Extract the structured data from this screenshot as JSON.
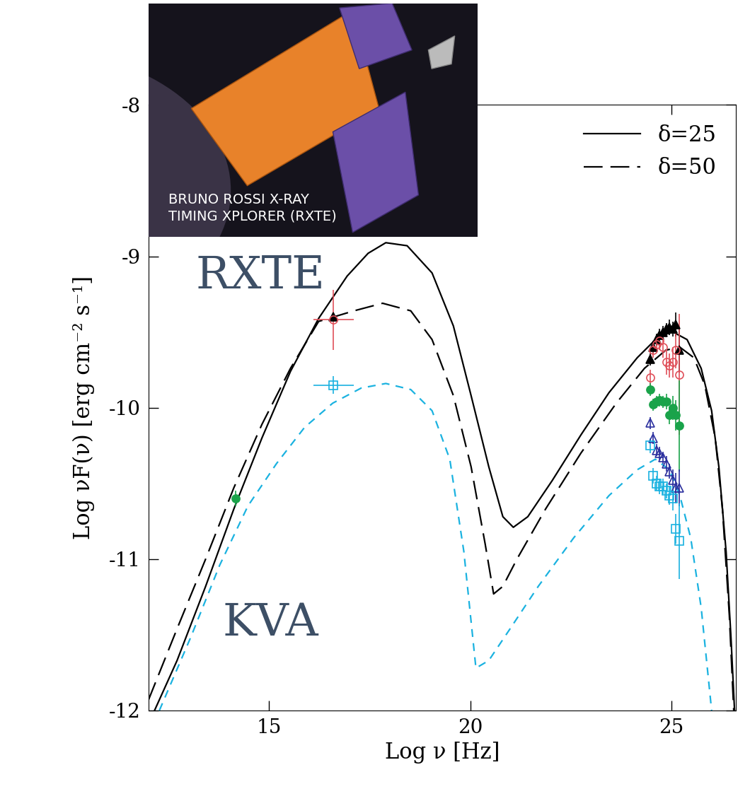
{
  "chart_data": {
    "type": "line",
    "x_label": "Log ν [Hz]",
    "y_label": "Log νF(ν) [erg cm⁻² s⁻¹]",
    "xlim": [
      12,
      26.6
    ],
    "ylim": [
      -12,
      -8
    ],
    "xticks": [
      15,
      20,
      25
    ],
    "yticks": [
      -12,
      -11,
      -10,
      -9,
      -8
    ],
    "legend": "upper right",
    "annotations": [
      "RXTE",
      "KVA"
    ],
    "series": [
      {
        "name": "δ=25",
        "type": "line",
        "color": "#000000",
        "line_style": "solid",
        "x": [
          12.15,
          12.71,
          13.42,
          14.12,
          14.82,
          15.53,
          16.23,
          16.94,
          17.46,
          17.9,
          18.43,
          19.05,
          19.58,
          20.02,
          20.46,
          20.81,
          21.07,
          21.43,
          22.04,
          22.75,
          23.45,
          24.15,
          24.68,
          25.04,
          25.39,
          25.74,
          26.0,
          26.18,
          26.36,
          26.48,
          26.57
        ],
        "values": [
          -12.0,
          -11.67,
          -11.18,
          -10.67,
          -10.2,
          -9.76,
          -9.41,
          -9.13,
          -8.98,
          -8.91,
          -8.93,
          -9.11,
          -9.46,
          -9.92,
          -10.39,
          -10.72,
          -10.79,
          -10.72,
          -10.48,
          -10.18,
          -9.9,
          -9.67,
          -9.53,
          -9.5,
          -9.55,
          -9.74,
          -10.02,
          -10.39,
          -10.95,
          -11.51,
          -12.0
        ]
      },
      {
        "name": "δ=50",
        "type": "line",
        "color": "#000000",
        "line_style": "long_dashed",
        "x": [
          12.0,
          12.71,
          13.42,
          14.12,
          14.82,
          15.53,
          16.23,
          17.11,
          17.82,
          18.52,
          19.05,
          19.58,
          20.02,
          20.37,
          20.58,
          20.81,
          21.16,
          21.87,
          22.75,
          23.63,
          24.33,
          24.86,
          25.21,
          25.56,
          25.83,
          26.09,
          26.27,
          26.44,
          26.55
        ],
        "values": [
          -11.93,
          -11.46,
          -11.0,
          -10.53,
          -10.11,
          -9.74,
          -9.43,
          -9.36,
          -9.31,
          -9.36,
          -9.55,
          -9.92,
          -10.39,
          -10.9,
          -11.23,
          -11.18,
          -11.0,
          -10.67,
          -10.3,
          -9.97,
          -9.74,
          -9.62,
          -9.6,
          -9.67,
          -9.85,
          -10.2,
          -10.67,
          -11.37,
          -12.0
        ]
      },
      {
        "type": "line",
        "color": "#1ab2e0",
        "line_style": "dashed",
        "x": [
          12.27,
          13.06,
          13.77,
          14.47,
          15.18,
          15.88,
          16.58,
          17.29,
          17.9,
          18.52,
          19.05,
          19.49,
          19.84,
          20.14,
          20.46,
          20.99,
          21.69,
          22.57,
          23.45,
          24.15,
          24.6,
          24.95,
          25.21,
          25.48,
          25.74,
          25.92,
          26.0
        ],
        "values": [
          -12.0,
          -11.51,
          -11.04,
          -10.65,
          -10.37,
          -10.13,
          -9.97,
          -9.87,
          -9.84,
          -9.88,
          -10.02,
          -10.34,
          -10.95,
          -11.72,
          -11.67,
          -11.46,
          -11.18,
          -10.86,
          -10.58,
          -10.41,
          -10.34,
          -10.41,
          -10.58,
          -10.86,
          -11.32,
          -11.79,
          -12.0
        ]
      },
      {
        "type": "scatter",
        "color": "#000000",
        "marker": "triangle",
        "x": [
          16.6,
          24.47,
          24.55,
          24.63,
          24.71,
          24.79,
          24.87,
          24.95,
          25.03,
          25.11,
          25.19
        ],
        "values": [
          -9.4,
          -9.68,
          -9.6,
          -9.55,
          -9.52,
          -9.5,
          -9.48,
          -9.47,
          -9.48,
          -9.45,
          -9.62
        ],
        "errors": [
          0.0,
          0.04,
          0.04,
          0.04,
          0.04,
          0.04,
          0.04,
          0.05,
          0.05,
          0.08,
          0.15
        ],
        "x_errors": [
          0.0,
          0.0,
          0.0,
          0.0,
          0.0,
          0.0,
          0.0,
          0.0,
          0.0,
          0.0,
          0.0
        ]
      },
      {
        "type": "scatter",
        "color": "#e0505a",
        "marker": "open_circle",
        "x": [
          16.6,
          24.47,
          24.55,
          24.63,
          24.71,
          24.79,
          24.87,
          24.95,
          25.03,
          25.11,
          25.19
        ],
        "values": [
          -9.42,
          -9.8,
          -9.62,
          -9.58,
          -9.56,
          -9.6,
          -9.7,
          -9.72,
          -9.7,
          -9.62,
          -9.78
        ],
        "errors": [
          0.2,
          0.05,
          0.05,
          0.05,
          0.06,
          0.07,
          0.08,
          0.08,
          0.1,
          0.12,
          0.4
        ],
        "x_errors": [
          0.5,
          0.0,
          0.0,
          0.0,
          0.0,
          0.0,
          0.0,
          0.0,
          0.0,
          0.0,
          0.0
        ]
      },
      {
        "type": "scatter",
        "color": "#1aa34a",
        "marker": "circle",
        "x": [
          14.17,
          24.47,
          24.55,
          24.63,
          24.71,
          24.79,
          24.87,
          24.95,
          25.03,
          25.11,
          25.19
        ],
        "values": [
          -10.6,
          -9.88,
          -9.98,
          -9.96,
          -9.95,
          -9.96,
          -9.96,
          -10.05,
          -10.0,
          -10.05,
          -10.12
        ],
        "errors": [
          0.05,
          0.04,
          0.04,
          0.04,
          0.04,
          0.04,
          0.05,
          0.06,
          0.08,
          0.1,
          0.3
        ],
        "x_errors": [
          0.0,
          0.0,
          0.0,
          0.0,
          0.0,
          0.0,
          0.0,
          0.0,
          0.0,
          0.0,
          0.0
        ]
      },
      {
        "type": "scatter",
        "color": "#2b2f9e",
        "marker": "open_triangle",
        "x": [
          24.47,
          24.55,
          24.63,
          24.71,
          24.79,
          24.87,
          24.95,
          25.03,
          25.11,
          25.19
        ],
        "values": [
          -10.1,
          -10.2,
          -10.28,
          -10.3,
          -10.33,
          -10.37,
          -10.42,
          -10.48,
          -10.53,
          -10.53
        ],
        "errors": [
          0.04,
          0.04,
          0.04,
          0.04,
          0.04,
          0.05,
          0.05,
          0.07,
          0.1,
          0.12
        ]
      },
      {
        "type": "scatter",
        "color": "#1ab2e0",
        "marker": "open_square",
        "x": [
          16.6,
          24.47,
          24.55,
          24.63,
          24.71,
          24.79,
          24.87,
          24.95,
          25.03,
          25.11,
          25.19
        ],
        "values": [
          -9.85,
          -10.25,
          -10.45,
          -10.5,
          -10.52,
          -10.52,
          -10.55,
          -10.58,
          -10.6,
          -10.8,
          -10.88
        ],
        "errors": [
          0.06,
          0.05,
          0.05,
          0.05,
          0.05,
          0.05,
          0.05,
          0.06,
          0.08,
          0.1,
          0.25
        ],
        "x_errors": [
          0.5,
          0.0,
          0.0,
          0.0,
          0.0,
          0.0,
          0.0,
          0.0,
          0.0,
          0.0,
          0.0
        ]
      }
    ]
  },
  "inset": {
    "label": "BRUNO ROSSI X-RAY\nTIMING XPLORER (RXTE)"
  }
}
